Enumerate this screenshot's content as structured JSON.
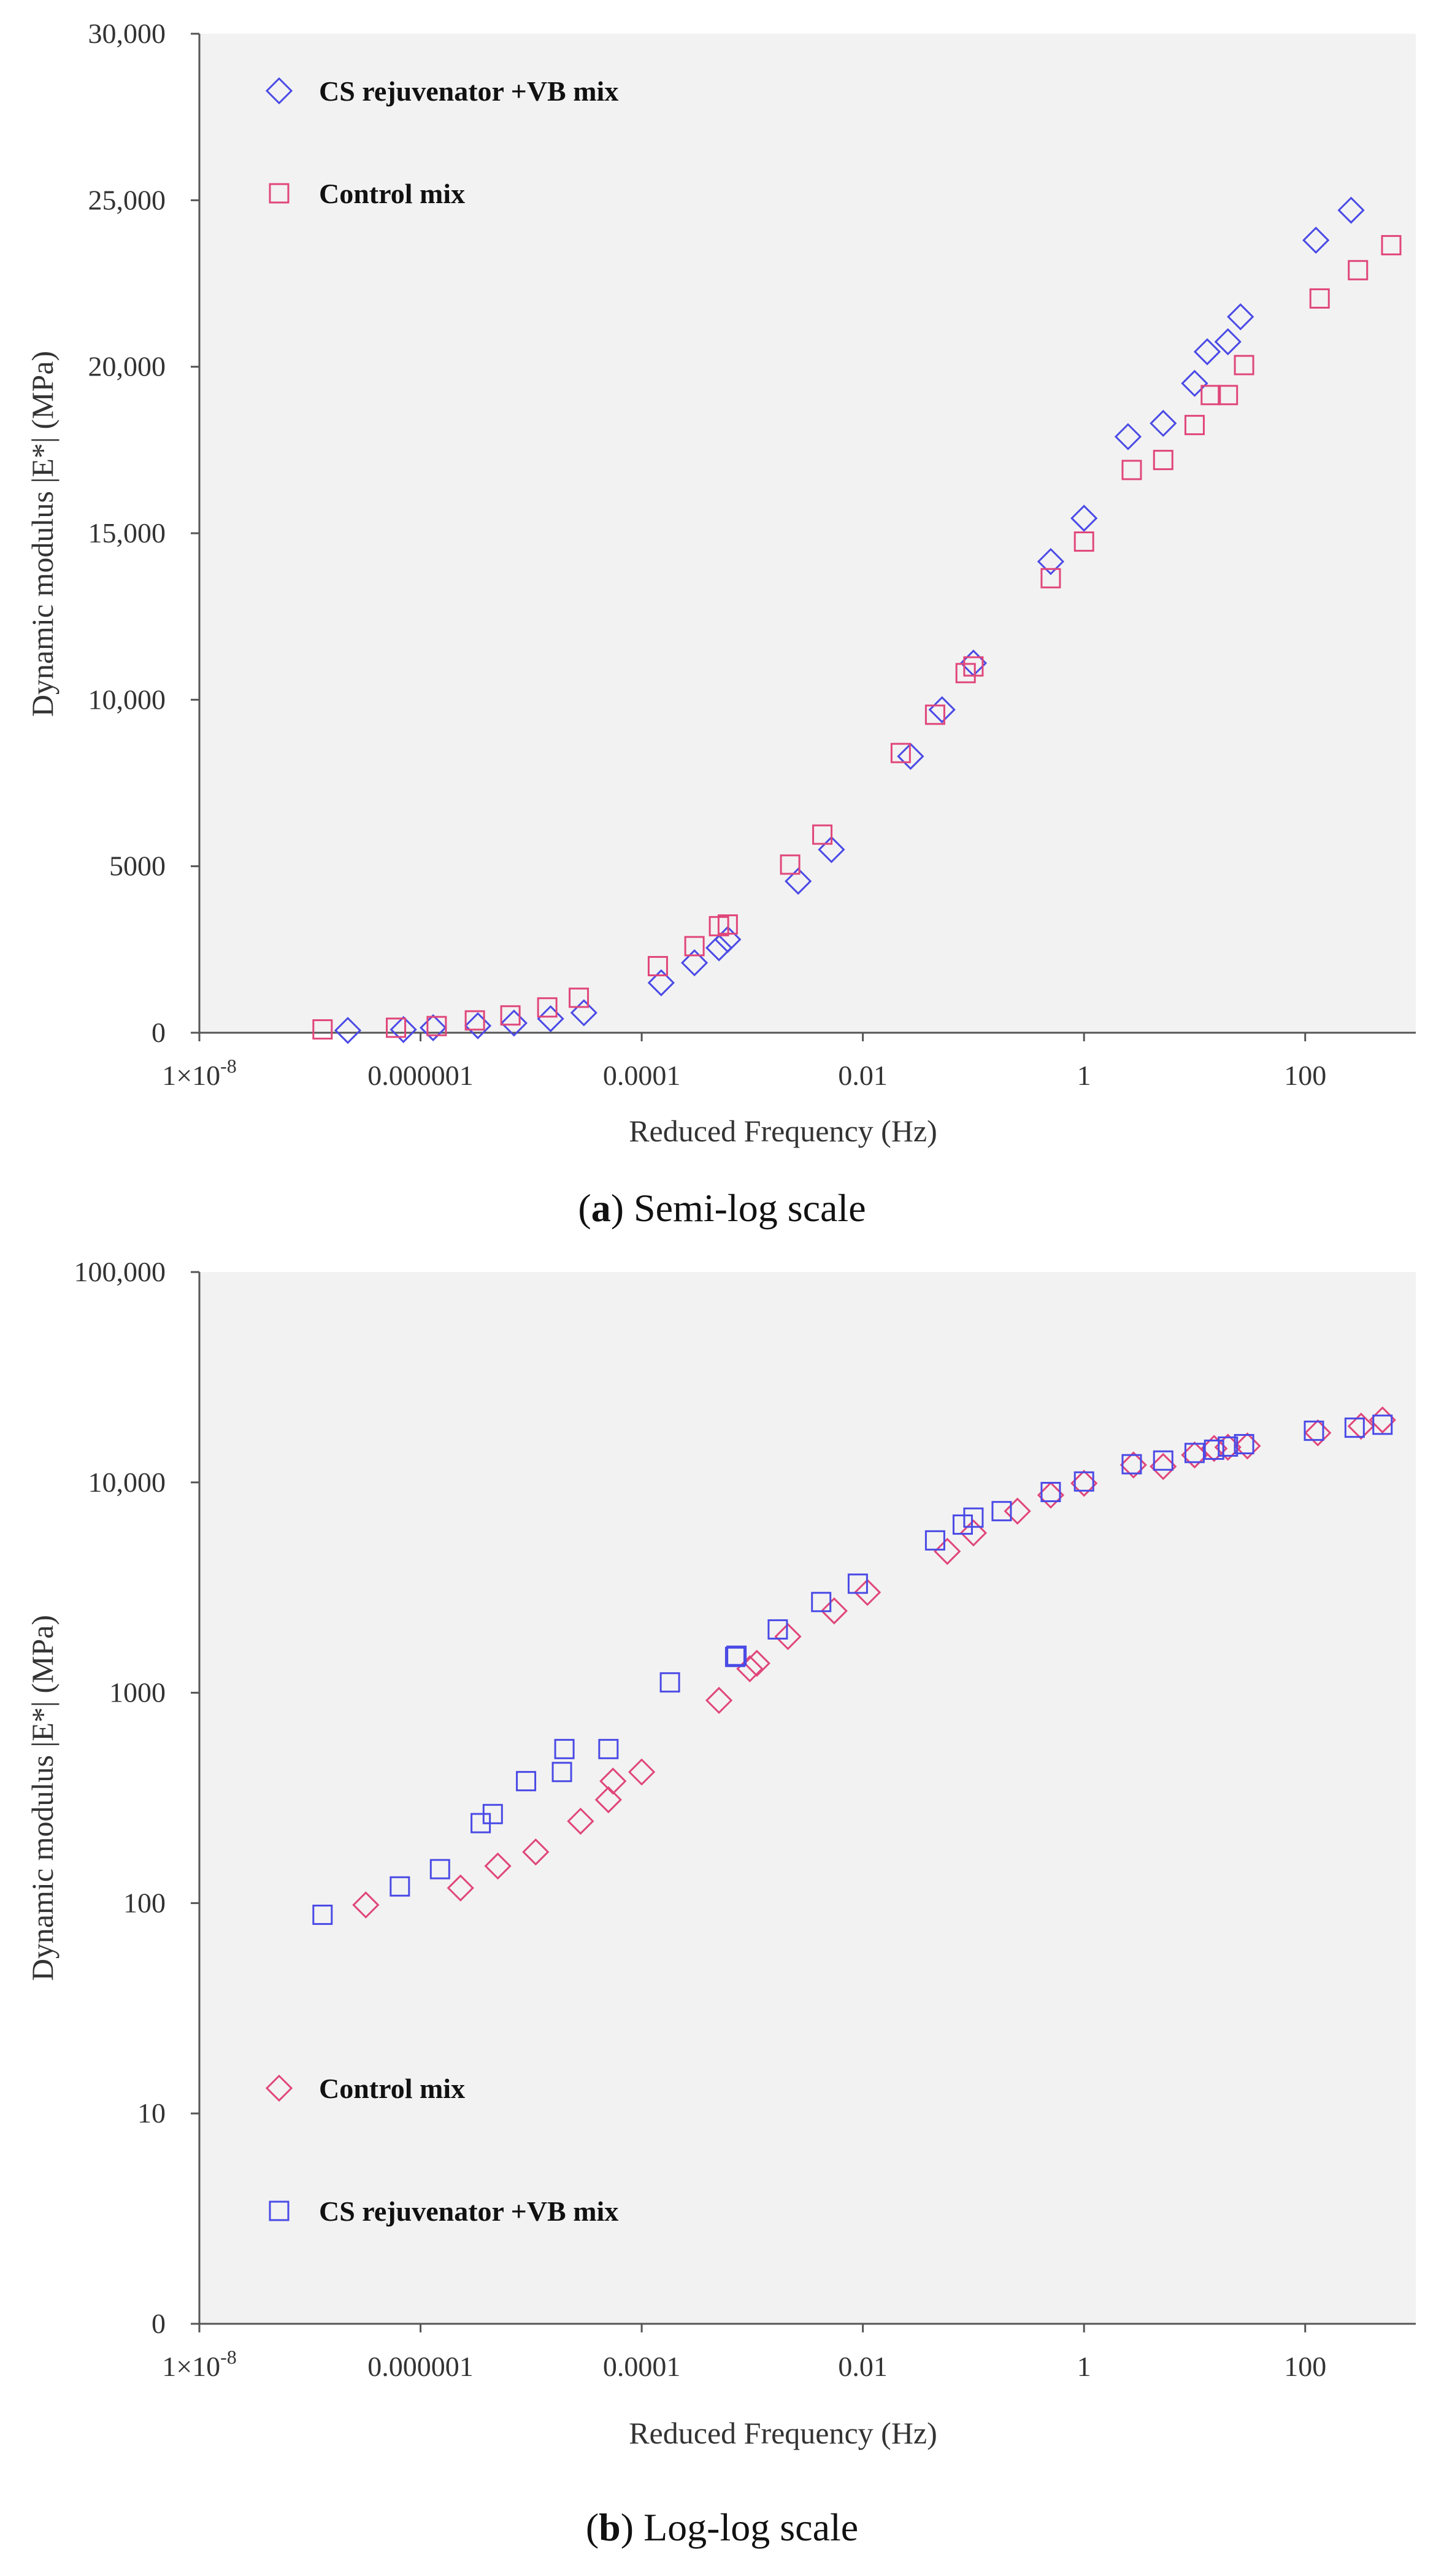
{
  "colors": {
    "blue": "#4a4ae6",
    "pink": "#e0467a",
    "plot_bg": "#f2f2f2",
    "axis": "#555555"
  },
  "chart_data": [
    {
      "type": "scatter",
      "panel": "a",
      "caption": {
        "letter": "a",
        "text": ") Semi-log scale"
      },
      "xlabel": "Reduced Frequency (Hz)",
      "ylabel": "Dynamic modulus |E*| (MPa)",
      "x_scale": "log",
      "y_scale": "linear",
      "xlim": [
        1e-08,
        1000
      ],
      "ylim": [
        0,
        30000
      ],
      "x_ticks": [
        {
          "value": 1e-08,
          "label": "1×10",
          "sup": "-8"
        },
        {
          "value": 1e-06,
          "label": "0.000001"
        },
        {
          "value": 0.0001,
          "label": "0.0001"
        },
        {
          "value": 0.01,
          "label": "0.01"
        },
        {
          "value": 1,
          "label": "1"
        },
        {
          "value": 100,
          "label": "100"
        }
      ],
      "y_ticks": [
        {
          "value": 0,
          "label": "0"
        },
        {
          "value": 5000,
          "label": "5000"
        },
        {
          "value": 10000,
          "label": "10,000"
        },
        {
          "value": 15000,
          "label": "15,000"
        },
        {
          "value": 20000,
          "label": "20,000"
        },
        {
          "value": 25000,
          "label": "25,000"
        },
        {
          "value": 30000,
          "label": "30,000"
        }
      ],
      "legend": "top-left",
      "series": [
        {
          "name": "CS rejuvenator +VB mix",
          "marker": "diamond",
          "color": "#4a4ae6",
          "points": [
            [
              2.2e-07,
              70
            ],
            [
              7e-07,
              95
            ],
            [
              1.3e-06,
              150
            ],
            [
              3.3e-06,
              210
            ],
            [
              7e-06,
              290
            ],
            [
              1.5e-05,
              420
            ],
            [
              3e-05,
              600
            ],
            [
              0.00015,
              1500
            ],
            [
              0.0003,
              2100
            ],
            [
              0.0005,
              2550
            ],
            [
              0.0006,
              2800
            ],
            [
              0.0026,
              4550
            ],
            [
              0.0052,
              5500
            ],
            [
              0.027,
              8300
            ],
            [
              0.052,
              9700
            ],
            [
              0.1,
              11100
            ],
            [
              0.5,
              14150
            ],
            [
              1.0,
              15450
            ],
            [
              2.5,
              17900
            ],
            [
              5.2,
              18300
            ],
            [
              10,
              19500
            ],
            [
              13,
              20450
            ],
            [
              20,
              20750
            ],
            [
              26,
              21500
            ],
            [
              125,
              23800
            ],
            [
              260,
              24700
            ]
          ]
        },
        {
          "name": "Control mix",
          "marker": "square",
          "color": "#e0467a",
          "points": [
            [
              1.3e-07,
              100
            ],
            [
              6e-07,
              150
            ],
            [
              1.4e-06,
              200
            ],
            [
              3.1e-06,
              370
            ],
            [
              6.5e-06,
              520
            ],
            [
              1.4e-05,
              760
            ],
            [
              2.7e-05,
              1050
            ],
            [
              0.00014,
              2000
            ],
            [
              0.0003,
              2600
            ],
            [
              0.0005,
              3200
            ],
            [
              0.0006,
              3250
            ],
            [
              0.0022,
              5050
            ],
            [
              0.0043,
              5950
            ],
            [
              0.022,
              8400
            ],
            [
              0.045,
              9550
            ],
            [
              0.085,
              10800
            ],
            [
              0.1,
              11000
            ],
            [
              0.5,
              13650
            ],
            [
              1.0,
              14750
            ],
            [
              2.7,
              16900
            ],
            [
              5.2,
              17200
            ],
            [
              10,
              18250
            ],
            [
              14,
              19150
            ],
            [
              20,
              19150
            ],
            [
              28,
              20050
            ],
            [
              135,
              22050
            ],
            [
              300,
              22900
            ],
            [
              600,
              23650
            ]
          ]
        }
      ]
    },
    {
      "type": "scatter",
      "panel": "b",
      "caption": {
        "letter": "b",
        "text": ") Log-log scale"
      },
      "xlabel": "Reduced Frequency (Hz)",
      "ylabel": "Dynamic modulus |E*| (MPa)",
      "x_scale": "log",
      "y_scale": "log",
      "xlim": [
        1e-08,
        1000
      ],
      "y_ticks": [
        {
          "value": 0,
          "label": "0"
        },
        {
          "value": 10,
          "label": "10"
        },
        {
          "value": 100,
          "label": "100"
        },
        {
          "value": 1000,
          "label": "1000"
        },
        {
          "value": 10000,
          "label": "10,000"
        },
        {
          "value": 100000,
          "label": "100,000"
        }
      ],
      "x_ticks": [
        {
          "value": 1e-08,
          "label": "1×10",
          "sup": "-8"
        },
        {
          "value": 1e-06,
          "label": "0.000001"
        },
        {
          "value": 0.0001,
          "label": "0.0001"
        },
        {
          "value": 0.01,
          "label": "0.01"
        },
        {
          "value": 1,
          "label": "1"
        },
        {
          "value": 100,
          "label": "100"
        }
      ],
      "legend": "bottom-left",
      "series": [
        {
          "name": "Control mix",
          "marker": "diamond",
          "color": "#e0467a",
          "points": [
            [
              3.2e-07,
              98
            ],
            [
              2.3e-06,
              118
            ],
            [
              5e-06,
              150
            ],
            [
              1.1e-05,
              175
            ],
            [
              2.8e-05,
              245
            ],
            [
              5e-05,
              310
            ],
            [
              5.5e-05,
              380
            ],
            [
              0.0001,
              420
            ],
            [
              0.0005,
              920
            ],
            [
              0.00095,
              1300
            ],
            [
              0.0011,
              1380
            ],
            [
              0.0021,
              1850
            ],
            [
              0.0055,
              2450
            ],
            [
              0.011,
              3000
            ],
            [
              0.058,
              4700
            ],
            [
              0.1,
              5750
            ],
            [
              0.25,
              7300
            ],
            [
              0.5,
              8700
            ],
            [
              1.0,
              9900
            ],
            [
              2.8,
              12100
            ],
            [
              5.2,
              11900
            ],
            [
              10,
              13500
            ],
            [
              15,
              14500
            ],
            [
              20,
              14700
            ],
            [
              30,
              14900
            ],
            [
              130,
              17200
            ],
            [
              320,
              18500
            ],
            [
              500,
              19800
            ]
          ]
        },
        {
          "name": "CS rejuvenator +VB mix",
          "marker": "square",
          "color": "#4a4ae6",
          "points": [
            [
              1.3e-07,
              88
            ],
            [
              6.5e-07,
              120
            ],
            [
              1.5e-06,
              145
            ],
            [
              3.5e-06,
              240
            ],
            [
              4.5e-06,
              265
            ],
            [
              9e-06,
              380
            ],
            [
              1.9e-05,
              420
            ],
            [
              2e-05,
              540
            ],
            [
              5e-05,
              540
            ],
            [
              0.00018,
              1120
            ],
            [
              0.0007,
              1480
            ],
            [
              0.00072,
              1500
            ],
            [
              0.0017,
              2000
            ],
            [
              0.0042,
              2700
            ],
            [
              0.009,
              3300
            ],
            [
              0.045,
              5300
            ],
            [
              0.08,
              6300
            ],
            [
              0.1,
              6800
            ],
            [
              0.18,
              7300
            ],
            [
              0.5,
              9000
            ],
            [
              1.0,
              10100
            ],
            [
              2.7,
              12200
            ],
            [
              5.2,
              12700
            ],
            [
              10,
              13800
            ],
            [
              15,
              14300
            ],
            [
              20,
              14800
            ],
            [
              28,
              15200
            ],
            [
              120,
              17600
            ],
            [
              280,
              18200
            ],
            [
              500,
              18800
            ]
          ]
        }
      ]
    }
  ]
}
